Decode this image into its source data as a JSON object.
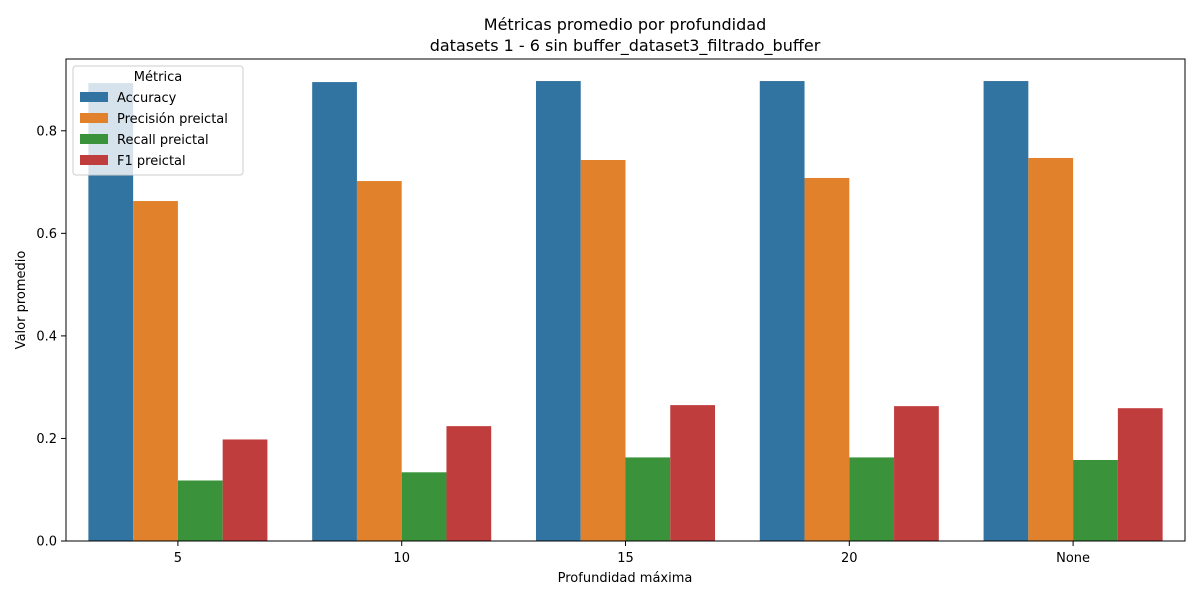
{
  "chart_data": {
    "type": "bar",
    "title": "Métricas promedio por profundidad",
    "subtitle": "datasets 1 - 6 sin buffer_dataset3_filtrado_buffer",
    "xlabel": "Profundidad máxima",
    "ylabel": "Valor promedio",
    "categories": [
      "5",
      "10",
      "15",
      "20",
      "None"
    ],
    "ylim": [
      0,
      0.94
    ],
    "yticks": [
      "0.0",
      "0.2",
      "0.4",
      "0.6",
      "0.8"
    ],
    "grid": false,
    "legend_title": "Métrica",
    "legend_position": "top-left",
    "series": [
      {
        "name": "Accuracy",
        "color": "#3274a1",
        "values": [
          0.893,
          0.895,
          0.897,
          0.897,
          0.897
        ]
      },
      {
        "name": "Precisión preictal",
        "color": "#e1812c",
        "values": [
          0.663,
          0.702,
          0.743,
          0.708,
          0.747
        ]
      },
      {
        "name": "Recall preictal",
        "color": "#3a923a",
        "values": [
          0.118,
          0.134,
          0.163,
          0.163,
          0.158
        ]
      },
      {
        "name": "F1 preictal",
        "color": "#c03d3e",
        "values": [
          0.198,
          0.224,
          0.265,
          0.263,
          0.259
        ]
      }
    ]
  }
}
